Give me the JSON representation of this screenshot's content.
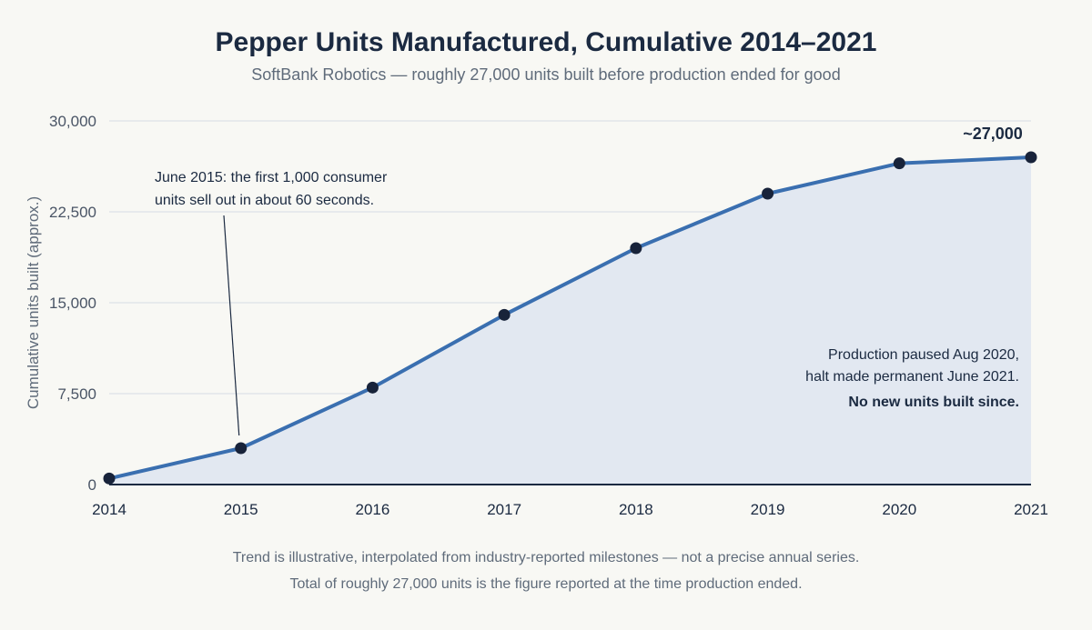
{
  "chart_data": {
    "type": "area",
    "title": "Pepper Units Manufactured, Cumulative 2014–2021",
    "subtitle": "SoftBank Robotics — roughly 27,000 units built before production ended for good",
    "xlabel": "",
    "ylabel": "Cumulative units built (approx.)",
    "x": [
      2014,
      2015,
      2016,
      2017,
      2018,
      2019,
      2020,
      2021
    ],
    "values": [
      500,
      3000,
      8000,
      14000,
      19500,
      24000,
      26500,
      27000
    ],
    "ylim": [
      0,
      30000
    ],
    "yticks": [
      0,
      7500,
      15000,
      22500,
      30000
    ],
    "ytick_labels": [
      "0",
      "7,500",
      "15,000",
      "22,500",
      "30,000"
    ],
    "xtick_labels": [
      "2014",
      "2015",
      "2016",
      "2017",
      "2018",
      "2019",
      "2020",
      "2021"
    ],
    "grid": true,
    "colors": {
      "line": "#3a6fb0",
      "fill": "#e2e8f1",
      "marker": "#18233a"
    },
    "end_label": "~27,000",
    "annotations": {
      "june2015": {
        "line1": "June 2015: the first 1,000 consumer",
        "line2": "units sell out in about 60 seconds.",
        "x": 2015,
        "y": 3000
      },
      "production": {
        "line1": "Production paused Aug 2020,",
        "line2": "halt made permanent June 2021.",
        "line3": "No new units built since."
      }
    },
    "footnotes": [
      "Trend is illustrative, interpolated from industry-reported milestones — not a precise annual series.",
      "Total of roughly 27,000 units is the figure reported at the time production ended."
    ]
  }
}
